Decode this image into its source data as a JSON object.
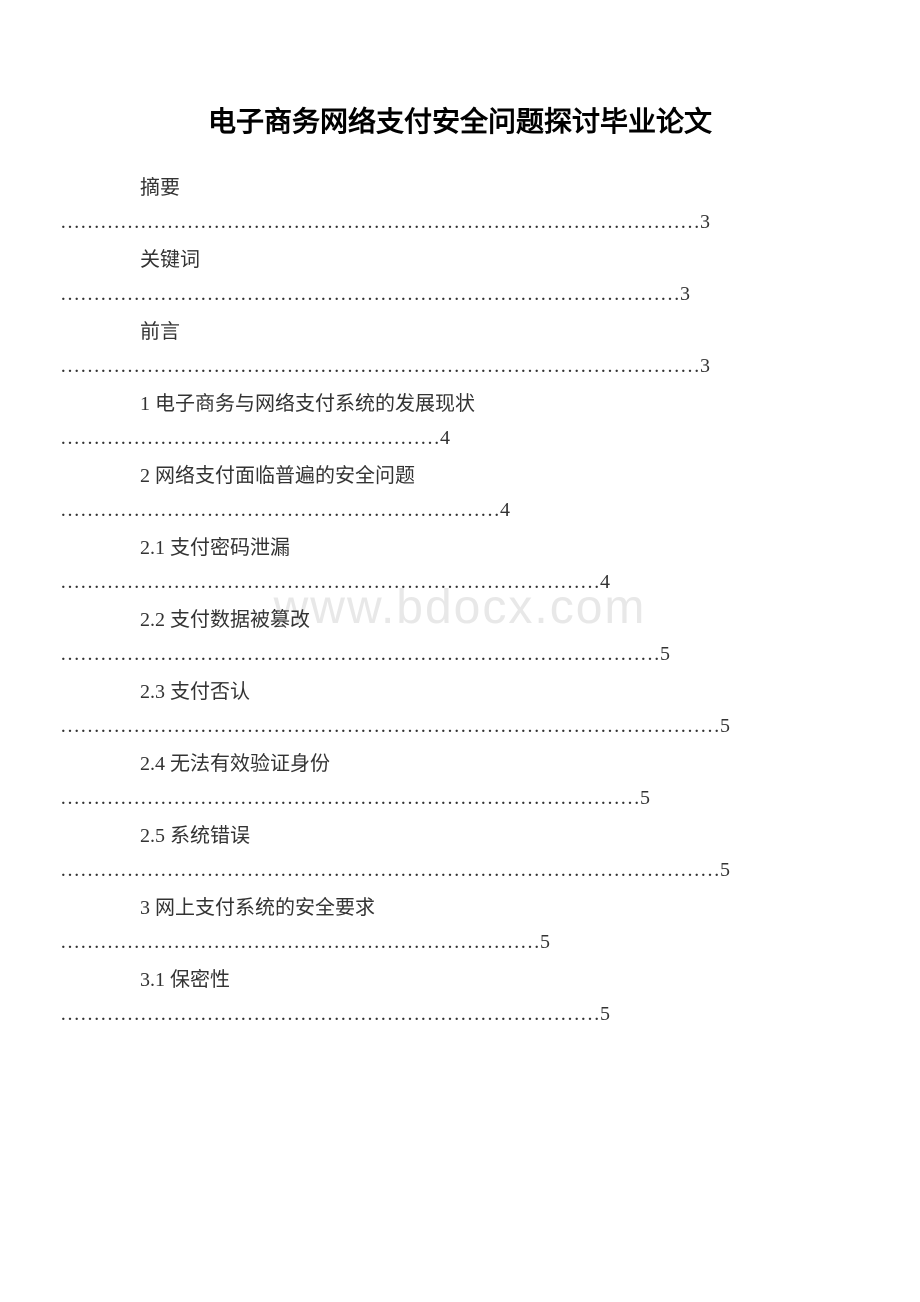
{
  "document": {
    "title": "电子商务网络支付安全问题探讨毕业论文",
    "watermark": "www.bdocx.com",
    "title_fontsize": 28,
    "body_fontsize": 20,
    "text_color": "#333333",
    "background_color": "#ffffff",
    "watermark_color": "#e8e8e8",
    "toc_entries": [
      {
        "label": "摘要",
        "dots": "……………………………………………………………………………………3",
        "indent": 0
      },
      {
        "label": "关键词",
        "dots": "…………………………………………………………………………………3",
        "indent": 0
      },
      {
        "label": "前言",
        "dots": "……………………………………………………………………………………3",
        "indent": 0
      },
      {
        "label": "1 电子商务与网络支付系统的发展现状",
        "dots": "…………………………………………………4",
        "indent": 0
      },
      {
        "label": "2 网络支付面临普遍的安全问题",
        "dots": "…………………………………………………………4",
        "indent": 0
      },
      {
        "label": " 2.1 支付密码泄漏",
        "dots": "………………………………………………………………………4",
        "indent": 1
      },
      {
        "label": "2.2 支付数据被篡改",
        "dots": "………………………………………………………………………………5",
        "indent": 1
      },
      {
        "label": "2.3 支付否认",
        "dots": "………………………………………………………………………………………5",
        "indent": 1
      },
      {
        "label": "2.4 无法有效验证身份",
        "dots": "……………………………………………………………………………5",
        "indent": 1
      },
      {
        "label": "2.5 系统错误",
        "dots": "………………………………………………………………………………………5",
        "indent": 1
      },
      {
        "label": "3 网上支付系统的安全要求",
        "dots": "………………………………………………………………5",
        "indent": 0
      },
      {
        "label": " 3.1 保密性",
        "dots": "………………………………………………………………………5",
        "indent": 1
      }
    ]
  }
}
